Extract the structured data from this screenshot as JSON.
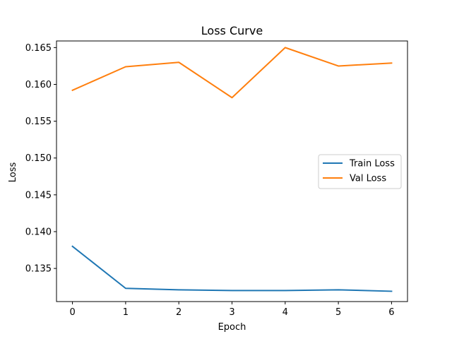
{
  "chart_data": {
    "type": "line",
    "title": "Loss Curve",
    "xlabel": "Epoch",
    "ylabel": "Loss",
    "x": [
      0,
      1,
      2,
      3,
      4,
      5,
      6
    ],
    "xlim": [
      -0.3,
      6.3
    ],
    "ylim": [
      0.1305,
      0.1659
    ],
    "xticks": [
      "0",
      "1",
      "2",
      "3",
      "4",
      "5",
      "6"
    ],
    "yticks": [
      "0.135",
      "0.140",
      "0.145",
      "0.150",
      "0.155",
      "0.160",
      "0.165"
    ],
    "grid": false,
    "legend_position": "center-right",
    "series": [
      {
        "name": "Train Loss",
        "color": "#1f77b4",
        "values": [
          0.138,
          0.1323,
          0.1321,
          0.132,
          0.132,
          0.1321,
          0.1319
        ]
      },
      {
        "name": "Val Loss",
        "color": "#ff7f0e",
        "values": [
          0.1592,
          0.1624,
          0.163,
          0.1582,
          0.165,
          0.1625,
          0.1629
        ]
      }
    ]
  }
}
